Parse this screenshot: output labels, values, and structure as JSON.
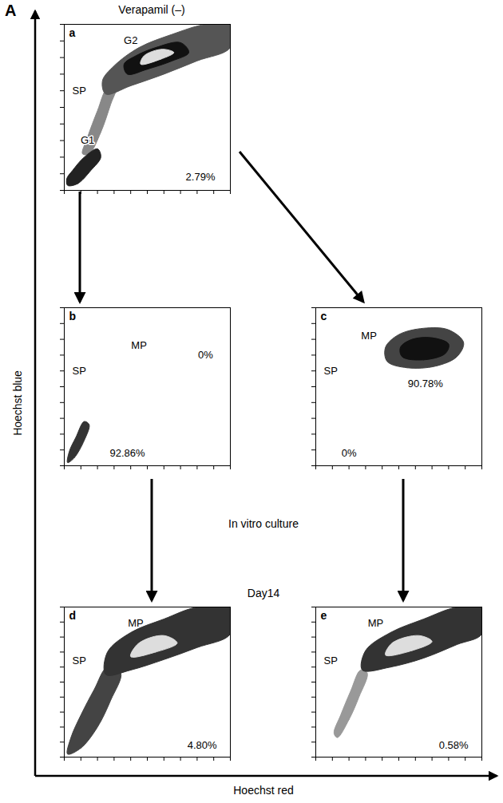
{
  "figure_label": "A",
  "xlabel": "Hoechst red",
  "ylabel": "Hoechst blue",
  "step_labels": [
    "In vitro culture",
    "Day14"
  ],
  "chart_data": [
    {
      "type": "scatter",
      "panel": "a",
      "title": "Verapamil (–)",
      "xlim": [
        0,
        10
      ],
      "ylim": [
        0,
        10
      ],
      "xticks": [
        0,
        1,
        2,
        3,
        4,
        5,
        6,
        7,
        8,
        9,
        10
      ],
      "yticks": [
        0,
        1,
        2,
        3,
        4,
        5,
        6,
        7,
        8,
        9,
        10
      ],
      "tick_labels": false,
      "regions": [
        {
          "color": "#888888",
          "points": [
            [
              1.5,
              2.2
            ],
            [
              2.2,
              3.5
            ],
            [
              2.8,
              5.2
            ],
            [
              3.2,
              6.4
            ],
            [
              2.6,
              6.2
            ],
            [
              2.0,
              4.8
            ],
            [
              1.4,
              3.2
            ],
            [
              1.1,
              2.2
            ]
          ]
        },
        {
          "color": "#555555",
          "points": [
            [
              2.5,
              5.8
            ],
            [
              4.0,
              6.3
            ],
            [
              6.0,
              7.0
            ],
            [
              8.0,
              7.8
            ],
            [
              10.0,
              8.6
            ],
            [
              10.0,
              10.0
            ],
            [
              8.5,
              10.0
            ],
            [
              6.5,
              9.4
            ],
            [
              4.5,
              8.6
            ],
            [
              3.0,
              7.5
            ],
            [
              2.3,
              6.6
            ]
          ]
        },
        {
          "color": "#111111",
          "points": [
            [
              3.8,
              7.0
            ],
            [
              5.0,
              7.3
            ],
            [
              6.5,
              7.8
            ],
            [
              7.5,
              8.3
            ],
            [
              7.0,
              8.9
            ],
            [
              5.5,
              8.6
            ],
            [
              4.3,
              8.1
            ],
            [
              3.6,
              7.6
            ]
          ]
        },
        {
          "color": "#dddddd",
          "points": [
            [
              4.6,
              7.6
            ],
            [
              5.8,
              7.9
            ],
            [
              6.6,
              8.3
            ],
            [
              5.9,
              8.5
            ],
            [
              4.8,
              8.1
            ]
          ]
        },
        {
          "color": "#222222",
          "points": [
            [
              0.2,
              0.3
            ],
            [
              0.8,
              0.4
            ],
            [
              1.6,
              1.2
            ],
            [
              2.2,
              2.0
            ],
            [
              2.0,
              2.5
            ],
            [
              1.2,
              2.0
            ],
            [
              0.5,
              1.2
            ],
            [
              0.15,
              0.7
            ]
          ]
        }
      ],
      "annotations": [
        {
          "text": "G2",
          "x": 4.0,
          "y": 9.0
        },
        {
          "text": "SP",
          "x": 0.9,
          "y": 6.0
        },
        {
          "text": "G1",
          "x": 1.4,
          "y": 3.0
        },
        {
          "text": "2.79%",
          "x": 8.2,
          "y": 0.8
        }
      ]
    },
    {
      "type": "scatter",
      "panel": "b",
      "xlim": [
        0,
        10
      ],
      "ylim": [
        0,
        10
      ],
      "xticks": [
        0,
        1,
        2,
        3,
        4,
        5,
        6,
        7,
        8,
        9,
        10
      ],
      "yticks": [
        0,
        1,
        2,
        3,
        4,
        5,
        6,
        7,
        8,
        9,
        10
      ],
      "tick_labels": false,
      "regions": [
        {
          "color": "#333333",
          "points": [
            [
              0.2,
              0.2
            ],
            [
              0.6,
              0.5
            ],
            [
              1.2,
              1.6
            ],
            [
              1.5,
              2.6
            ],
            [
              1.2,
              2.8
            ],
            [
              0.7,
              1.8
            ],
            [
              0.3,
              0.9
            ]
          ]
        }
      ],
      "annotations": [
        {
          "text": "MP",
          "x": 4.5,
          "y": 7.6
        },
        {
          "text": "SP",
          "x": 0.9,
          "y": 6.0
        },
        {
          "text": "0%",
          "x": 8.5,
          "y": 7.0
        },
        {
          "text": "92.86%",
          "x": 3.8,
          "y": 0.8
        }
      ]
    },
    {
      "type": "scatter",
      "panel": "c",
      "xlim": [
        0,
        10
      ],
      "ylim": [
        0,
        10
      ],
      "xticks": [
        0,
        1,
        2,
        3,
        4,
        5,
        6,
        7,
        8,
        9,
        10
      ],
      "yticks": [
        0,
        1,
        2,
        3,
        4,
        5,
        6,
        7,
        8,
        9,
        10
      ],
      "tick_labels": false,
      "regions": [
        {
          "color": "#444444",
          "points": [
            [
              4.3,
              6.6
            ],
            [
              5.5,
              6.2
            ],
            [
              7.2,
              6.3
            ],
            [
              8.5,
              6.9
            ],
            [
              8.9,
              7.8
            ],
            [
              8.0,
              8.6
            ],
            [
              6.5,
              8.7
            ],
            [
              5.0,
              8.3
            ],
            [
              4.2,
              7.5
            ]
          ]
        },
        {
          "color": "#111111",
          "points": [
            [
              5.2,
              6.9
            ],
            [
              6.5,
              6.7
            ],
            [
              7.8,
              7.1
            ],
            [
              8.0,
              7.7
            ],
            [
              7.0,
              8.1
            ],
            [
              5.8,
              8.0
            ],
            [
              5.1,
              7.5
            ]
          ]
        }
      ],
      "annotations": [
        {
          "text": "MP",
          "x": 3.2,
          "y": 8.2
        },
        {
          "text": "SP",
          "x": 0.9,
          "y": 6.0
        },
        {
          "text": "90.78%",
          "x": 6.6,
          "y": 5.2
        },
        {
          "text": "0%",
          "x": 2.0,
          "y": 0.8
        }
      ]
    },
    {
      "type": "scatter",
      "panel": "d",
      "xlim": [
        0,
        10
      ],
      "ylim": [
        0,
        10
      ],
      "xticks": [
        0,
        1,
        2,
        3,
        4,
        5,
        6,
        7,
        8,
        9,
        10
      ],
      "yticks": [
        0,
        1,
        2,
        3,
        4,
        5,
        6,
        7,
        8,
        9,
        10
      ],
      "tick_labels": false,
      "regions": [
        {
          "color": "#444444",
          "points": [
            [
              0.2,
              0.2
            ],
            [
              1.0,
              0.6
            ],
            [
              2.0,
              2.0
            ],
            [
              2.8,
              3.8
            ],
            [
              3.4,
              5.6
            ],
            [
              2.6,
              6.0
            ],
            [
              1.8,
              4.5
            ],
            [
              1.0,
              2.8
            ],
            [
              0.4,
              1.3
            ]
          ]
        },
        {
          "color": "#333333",
          "points": [
            [
              2.5,
              5.5
            ],
            [
              4.0,
              5.8
            ],
            [
              6.0,
              6.5
            ],
            [
              8.0,
              7.3
            ],
            [
              10.0,
              8.2
            ],
            [
              10.0,
              10.0
            ],
            [
              8.0,
              10.0
            ],
            [
              6.0,
              9.2
            ],
            [
              4.0,
              8.3
            ],
            [
              2.6,
              7.0
            ]
          ]
        },
        {
          "color": "#dddddd",
          "points": [
            [
              4.0,
              6.7
            ],
            [
              5.5,
              7.0
            ],
            [
              6.8,
              7.6
            ],
            [
              6.0,
              8.1
            ],
            [
              4.5,
              7.6
            ]
          ]
        }
      ],
      "annotations": [
        {
          "text": "MP",
          "x": 4.3,
          "y": 8.9
        },
        {
          "text": "SP",
          "x": 0.9,
          "y": 6.4
        },
        {
          "text": "4.80%",
          "x": 8.3,
          "y": 0.8
        }
      ]
    },
    {
      "type": "scatter",
      "panel": "e",
      "xlim": [
        0,
        10
      ],
      "ylim": [
        0,
        10
      ],
      "xticks": [
        0,
        1,
        2,
        3,
        4,
        5,
        6,
        7,
        8,
        9,
        10
      ],
      "yticks": [
        0,
        1,
        2,
        3,
        4,
        5,
        6,
        7,
        8,
        9,
        10
      ],
      "tick_labels": false,
      "regions": [
        {
          "color": "#999999",
          "points": [
            [
              1.3,
              1.3
            ],
            [
              2.0,
              2.5
            ],
            [
              2.6,
              4.0
            ],
            [
              3.1,
              5.6
            ],
            [
              2.7,
              5.8
            ],
            [
              2.1,
              4.4
            ],
            [
              1.5,
              2.8
            ],
            [
              1.1,
              1.6
            ]
          ]
        },
        {
          "color": "#333333",
          "points": [
            [
              2.8,
              5.8
            ],
            [
              4.5,
              6.0
            ],
            [
              6.5,
              6.6
            ],
            [
              8.5,
              7.5
            ],
            [
              10.0,
              8.2
            ],
            [
              10.0,
              10.0
            ],
            [
              8.5,
              10.0
            ],
            [
              6.5,
              9.2
            ],
            [
              4.5,
              8.3
            ],
            [
              3.0,
              7.1
            ]
          ]
        },
        {
          "color": "#dddddd",
          "points": [
            [
              4.2,
              6.8
            ],
            [
              5.8,
              7.1
            ],
            [
              7.0,
              7.7
            ],
            [
              6.2,
              8.1
            ],
            [
              4.6,
              7.6
            ]
          ]
        }
      ],
      "annotations": [
        {
          "text": "MP",
          "x": 3.6,
          "y": 8.9
        },
        {
          "text": "SP",
          "x": 0.9,
          "y": 6.4
        },
        {
          "text": "0.58%",
          "x": 8.3,
          "y": 0.8
        }
      ]
    }
  ]
}
